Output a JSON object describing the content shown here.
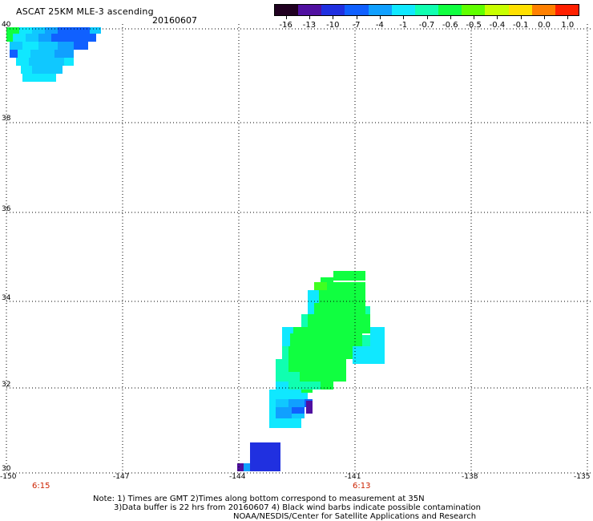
{
  "header": {
    "title": "ASCAT 25KM MLE-3 ascending",
    "date": "20160607"
  },
  "colorbar": {
    "labels": [
      "-16",
      "-13",
      "-10",
      "-7",
      "-4",
      "-1",
      "-0.7",
      "-0.6",
      "-0.5",
      "-0.4",
      "-0.1",
      "0.0",
      "1.0"
    ],
    "colors": [
      "#200020",
      "#5010a0",
      "#2030e0",
      "#1060ff",
      "#10a0ff",
      "#10e8ff",
      "#10ffb0",
      "#10ff40",
      "#60ff00",
      "#c8ff00",
      "#ffe000",
      "#ff8000",
      "#ff2000"
    ]
  },
  "axes": {
    "x_ticks": [
      "-150",
      "-147",
      "-144",
      "-141",
      "-138",
      "-135"
    ],
    "y_ticks": [
      "30",
      "32",
      "34",
      "36",
      "38",
      "40"
    ]
  },
  "time_labels": [
    "6:15",
    "6:13"
  ],
  "notes": {
    "line1": "Note: 1) Times are GMT 2)Times along bottom correspond to measurement at 35N",
    "line2": "3)Data buffer is 22 hrs from 20160607 4) Black wind barbs indicate possible contamination",
    "line3": "NOAA/NESDIS/Center for Satellite Applications and Research"
  }
}
